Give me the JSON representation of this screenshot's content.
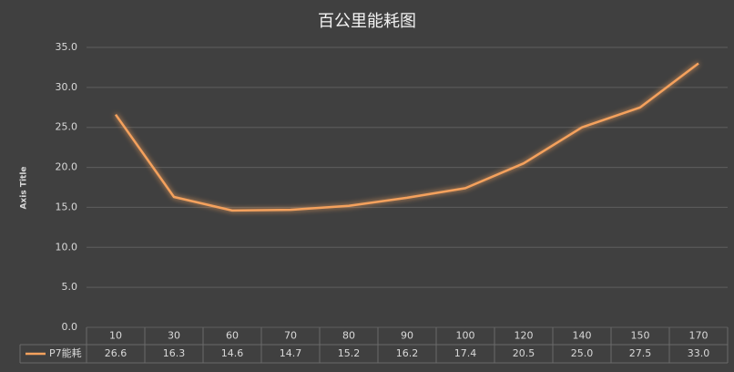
{
  "chart_data": {
    "type": "line",
    "title": "百公里能耗图",
    "y_label": "Axis Title",
    "categories": [
      "10",
      "30",
      "60",
      "70",
      "80",
      "90",
      "100",
      "120",
      "140",
      "150",
      "170"
    ],
    "series": [
      {
        "name": "P7能耗",
        "color": "#f4a15d",
        "values": [
          26.6,
          16.3,
          14.6,
          14.7,
          15.2,
          16.2,
          17.4,
          20.5,
          25.0,
          27.5,
          33.0
        ],
        "value_labels": [
          "26.6",
          "16.3",
          "14.6",
          "14.7",
          "15.2",
          "16.2",
          "17.4",
          "20.5",
          "25.0",
          "27.5",
          "33.0"
        ]
      }
    ],
    "ylim": [
      0,
      35
    ],
    "yticks": [
      {
        "value": 0,
        "label": "0.0"
      },
      {
        "value": 5,
        "label": "5.0"
      },
      {
        "value": 10,
        "label": "10.0"
      },
      {
        "value": 15,
        "label": "15.0"
      },
      {
        "value": 20,
        "label": "20.0"
      },
      {
        "value": 25,
        "label": "25.0"
      },
      {
        "value": 30,
        "label": "30.0"
      },
      {
        "value": 35,
        "label": "35.0"
      }
    ],
    "grid": true,
    "data_table": true
  }
}
